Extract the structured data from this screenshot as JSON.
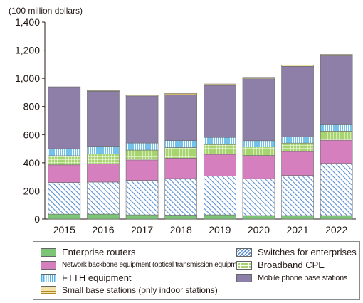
{
  "chart_data": {
    "type": "bar",
    "stacked": true,
    "y_unit_label": "(100 million dollars)",
    "ylim": [
      0,
      1400
    ],
    "yticks": [
      0,
      200,
      400,
      600,
      800,
      1000,
      1200,
      1400
    ],
    "ytick_labels": [
      "0",
      "200",
      "400",
      "600",
      "800",
      "1,000",
      "1,200",
      "1,400"
    ],
    "categories": [
      "2015",
      "2016",
      "2017",
      "2018",
      "2019",
      "2020",
      "2021",
      "2022"
    ],
    "grid": false,
    "legend_position": "bottom",
    "series": [
      {
        "name": "Enterprise routers",
        "pattern": "solid",
        "color": "#7cc576",
        "values": [
          35,
          35,
          30,
          28,
          30,
          25,
          25,
          25
        ]
      },
      {
        "name": "Switches for enterprises",
        "pattern": "diagonal",
        "color": "#5b8fd0",
        "values": [
          225,
          228,
          245,
          260,
          275,
          262,
          285,
          370
        ]
      },
      {
        "name": "Network backbone equipment (optical transmission equipment)",
        "pattern": "solid",
        "color": "#d67fbf",
        "values": [
          125,
          130,
          145,
          145,
          155,
          165,
          170,
          165
        ]
      },
      {
        "name": "Broadband CPE",
        "pattern": "grid",
        "color": "#a8d46f",
        "values": [
          65,
          70,
          70,
          75,
          70,
          60,
          60,
          65
        ]
      },
      {
        "name": "FTTH equipment",
        "pattern": "vertical",
        "color": "#4fb3e8",
        "values": [
          50,
          55,
          50,
          50,
          50,
          45,
          45,
          45
        ]
      },
      {
        "name": "Mobile phone base stations",
        "pattern": "solid",
        "color": "#8e7fa8",
        "values": [
          435,
          390,
          335,
          325,
          370,
          440,
          500,
          490
        ]
      },
      {
        "name": "Small base stations (only indoor stations)",
        "pattern": "horizontal",
        "color": "#e0c267",
        "values": [
          5,
          5,
          8,
          10,
          10,
          10,
          10,
          10
        ]
      }
    ]
  },
  "legend": {
    "items": [
      {
        "label": "Enterprise routers",
        "series": 0
      },
      {
        "label": "Switches for enterprises",
        "series": 1
      },
      {
        "label": "Network backbone equipment (optical transmission equipment)",
        "series": 2
      },
      {
        "label": "Broadband CPE",
        "series": 3
      },
      {
        "label": "FTTH equipment",
        "series": 4
      },
      {
        "label": "Mobile phone base stations",
        "series": 5
      },
      {
        "label": "Small base stations (only indoor stations)",
        "series": 6
      }
    ]
  }
}
